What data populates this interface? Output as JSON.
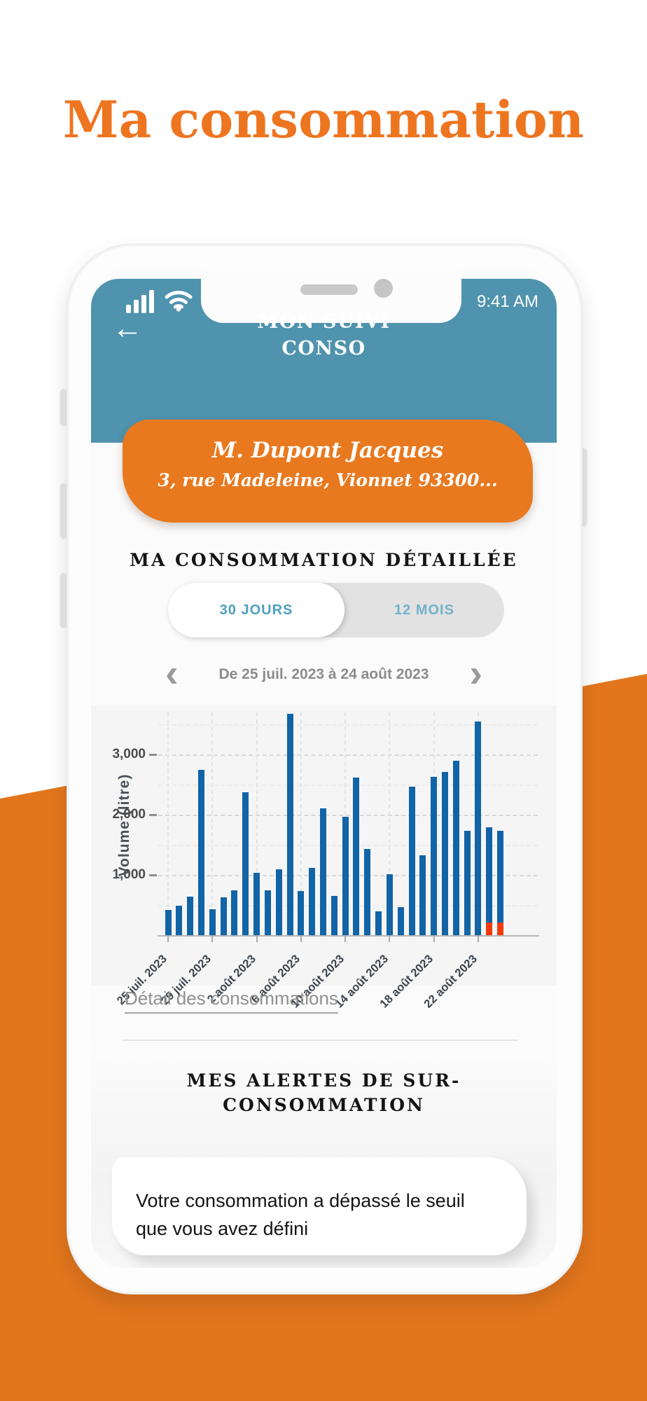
{
  "page": {
    "title": "Ma consommation"
  },
  "theme": {
    "orange_background": "#e3761d",
    "orange_card": "#e8791f",
    "orange_title": "#ee7520",
    "teal_header": "#4f93ae",
    "toggle_active_text": "#4e9fc0",
    "toggle_inactive_text": "#72b1cb"
  },
  "phone": {
    "status_bar": {
      "time": "9:41 AM",
      "icons": [
        "signal-icon",
        "wifi-icon"
      ]
    },
    "header": {
      "back_icon": "←",
      "title_line1": "MON SUIVI",
      "title_line2": "CONSO"
    },
    "account_card": {
      "name": "M. Dupont Jacques",
      "address": "3, rue Madeleine, Vionnet 93300..."
    },
    "consumption": {
      "heading": "MA CONSOMMATION DÉTAILLÉE",
      "toggle": {
        "option_30": "30 JOURS",
        "option_12": "12 MOIS",
        "active": "30 JOURS"
      },
      "date_nav": {
        "prev_icon": "‹",
        "label": "De 25 juil. 2023 à 24 août 2023",
        "next_icon": "›"
      },
      "detail_link": "Détail des consommations"
    },
    "alerts": {
      "heading_line1": "MES ALERTES DE SUR-",
      "heading_line2": "CONSOMMATION",
      "message": "Votre consommation a dépassé le seuil que vous avez défini"
    }
  },
  "chart_data": {
    "type": "bar",
    "title": "",
    "xlabel": "",
    "ylabel": "Volume (litre)",
    "ylim": [
      0,
      3700
    ],
    "yticks": [
      1000,
      2000,
      3000
    ],
    "ytick_labels": [
      "1,000",
      "2,000",
      "3,000"
    ],
    "minor_gridlines": [
      500,
      1500,
      2500,
      3500
    ],
    "x_tick_labels": [
      "25 juil. 2023",
      "29 juil. 2023",
      "2 août 2023",
      "6 août 2023",
      "10 août 2023",
      "14 août 2023",
      "18 août 2023",
      "22 août 2023"
    ],
    "x_tick_positions": [
      0,
      4,
      8,
      12,
      16,
      20,
      24,
      28
    ],
    "values": [
      420,
      490,
      640,
      2750,
      430,
      630,
      740,
      2370,
      1030,
      740,
      1090,
      3670,
      730,
      1120,
      2110,
      650,
      1960,
      2620,
      1430,
      390,
      1010,
      470,
      2470,
      1330,
      2630,
      2710,
      2890,
      1730,
      3550,
      1790,
      1730
    ],
    "alert_segments": [
      {
        "index": 29,
        "value": 215
      },
      {
        "index": 30,
        "value": 215
      }
    ],
    "bar_color": "#1164a6",
    "alert_color": "#f23a0e",
    "grid": true,
    "legend": false
  }
}
